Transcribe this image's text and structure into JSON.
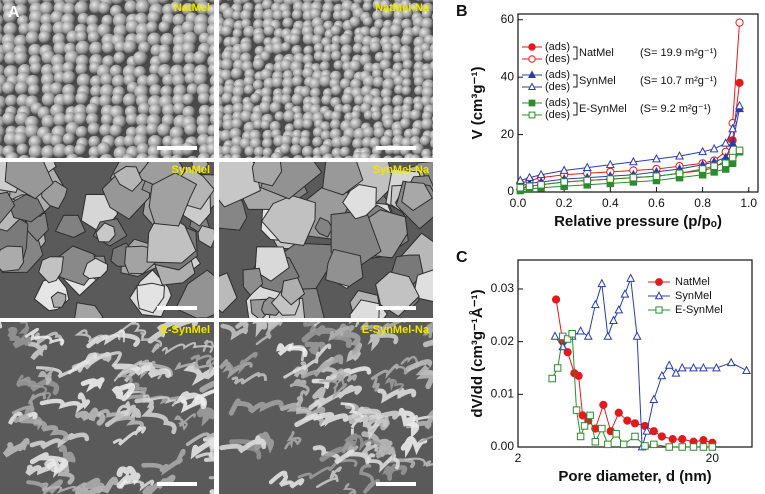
{
  "panel_a": {
    "label": "A",
    "images": [
      "NatMel",
      "NatMel-Na",
      "SynMel",
      "SynMel-Na",
      "E-SynMel",
      "E-SynMel-Na"
    ]
  },
  "chart_data": [
    {
      "type": "line",
      "panel": "B",
      "x_label": "Relative pressure (p/pₒ)",
      "y_label": "V (cm³g⁻¹)",
      "x": [
        0.01,
        0.05,
        0.1,
        0.2,
        0.3,
        0.4,
        0.5,
        0.6,
        0.7,
        0.8,
        0.85,
        0.9,
        0.93,
        0.96
      ],
      "series": [
        {
          "name": "(ads)",
          "color": "#e31a1c",
          "marker": "circle",
          "filled": true,
          "values": [
            1,
            2,
            2.5,
            3.5,
            4,
            4.5,
            5,
            5.5,
            6.5,
            7.5,
            8.5,
            11,
            18,
            38
          ]
        },
        {
          "name": "(des)",
          "color": "#e31a1c",
          "marker": "circle",
          "filled": false,
          "values": [
            3,
            4,
            5,
            6,
            6.5,
            7,
            7.5,
            8,
            9,
            10,
            11,
            14,
            24,
            59
          ]
        },
        {
          "name": "(ads)",
          "color": "#2a3cb0",
          "marker": "triangle",
          "filled": true,
          "values": [
            2,
            3,
            3.5,
            4.5,
            5,
            5.5,
            6,
            7,
            8,
            9.5,
            10.5,
            12,
            17,
            29
          ]
        },
        {
          "name": "(des)",
          "color": "#2a3cb0",
          "marker": "triangle",
          "filled": false,
          "values": [
            4,
            5,
            6,
            7.5,
            8.5,
            9.5,
            10.5,
            11.5,
            12.5,
            14,
            15,
            17,
            22,
            30
          ]
        },
        {
          "name": "(ads)",
          "color": "#2e8b2e",
          "marker": "square",
          "filled": true,
          "values": [
            0.5,
            1,
            1.5,
            2,
            2.5,
            3,
            3.5,
            4,
            5,
            6,
            7,
            8,
            10,
            14
          ]
        },
        {
          "name": "(des)",
          "color": "#2e8b2e",
          "marker": "square",
          "filled": false,
          "values": [
            1.5,
            2,
            2.5,
            3.5,
            4,
            4.5,
            5,
            5.5,
            6.5,
            8,
            9,
            10,
            12,
            14.5
          ]
        }
      ],
      "legend_groups": [
        {
          "name": "NatMel",
          "note": "(S= 19.9 m²g⁻¹)"
        },
        {
          "name": "SynMel",
          "note": "(S= 10.7 m²g⁻¹)"
        },
        {
          "name": "E-SynMel",
          "note": "(S= 9.2 m²g⁻¹)"
        }
      ],
      "xlim": [
        0,
        1.04
      ],
      "ylim": [
        0,
        62
      ],
      "xticks": [
        {
          "value": 0,
          "label": "0.0"
        },
        0.2,
        0.4,
        0.6,
        0.8,
        {
          "value": 1,
          "label": "1.0"
        }
      ],
      "yticks": [
        0,
        20,
        40,
        60
      ]
    },
    {
      "type": "line",
      "panel": "C",
      "x_label": "Pore diameter, d (nm)",
      "y_label": "dV/dd (cm³g⁻¹Å⁻¹)",
      "xscale": "log",
      "legend": "top-right",
      "series": [
        {
          "name": "NatMel",
          "color": "#e31a1c",
          "marker": "circle",
          "filled": true,
          "x": [
            3.14,
            3.4,
            3.6,
            3.9,
            4.1,
            4.3,
            4.6,
            5.0,
            5.5,
            6,
            6.6,
            7.3,
            8,
            9,
            10,
            11,
            12.5,
            14,
            16,
            18,
            20
          ],
          "values": [
            0.028,
            0.02,
            0.018,
            0.014,
            0.0135,
            0.006,
            0.005,
            0.0035,
            0.008,
            0.003,
            0.0065,
            0.005,
            0.0045,
            0.004,
            0.003,
            0.002,
            0.0015,
            0.0015,
            0.001,
            0.0013,
            0.0008
          ]
        },
        {
          "name": "SynMel",
          "color": "#2a3cb0",
          "marker": "triangle",
          "filled": false,
          "x": [
            3.1,
            3.4,
            3.8,
            4.2,
            4.6,
            5,
            5.4,
            5.8,
            6.2,
            6.6,
            7.1,
            7.6,
            8.2,
            8.7,
            9.2,
            10,
            11,
            12,
            13,
            14,
            16,
            18,
            21,
            25,
            30
          ],
          "values": [
            0.021,
            0.019,
            0.021,
            0.022,
            0.021,
            0.027,
            0.031,
            0.021,
            0.024,
            0.026,
            0.029,
            0.032,
            0.021,
            0.0,
            0.003,
            0.009,
            0.0135,
            0.0155,
            0.014,
            0.015,
            0.015,
            0.015,
            0.015,
            0.016,
            0.0145
          ]
        },
        {
          "name": "E-SynMel",
          "color": "#2e8b2e",
          "marker": "square",
          "filled": false,
          "x": [
            3.0,
            3.2,
            3.4,
            3.6,
            3.8,
            4.0,
            4.2,
            4.4,
            4.7,
            5.0,
            5.4,
            5.8,
            6.4,
            7,
            8,
            9,
            10,
            12,
            14,
            16,
            18,
            20
          ],
          "values": [
            0.013,
            0.015,
            0.021,
            0.0205,
            0.0215,
            0.007,
            0.002,
            0.004,
            0.006,
            0.001,
            0.0035,
            0.0005,
            0.0025,
            0.0005,
            0.002,
            0.0002,
            0.0005,
            0.0,
            0.0,
            0.0,
            0.0,
            0.0
          ]
        }
      ],
      "xlim": [
        2,
        32
      ],
      "ylim": [
        0,
        0.0355
      ],
      "xticks": [
        2,
        20
      ],
      "yticks": [
        {
          "value": 0,
          "label": "0.00"
        },
        {
          "value": 0.01,
          "label": "0.01"
        },
        {
          "value": 0.02,
          "label": "0.02"
        },
        {
          "value": 0.03,
          "label": "0.03"
        }
      ]
    }
  ]
}
